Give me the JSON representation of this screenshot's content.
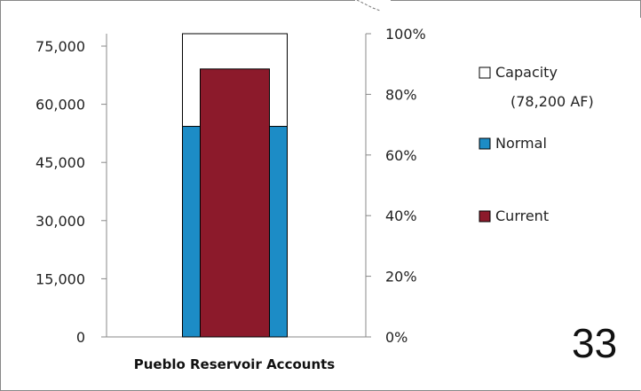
{
  "chart_data": {
    "type": "bar",
    "categories": [
      "Pueblo Reservoir Accounts"
    ],
    "series": [
      {
        "name": "Capacity",
        "sublabel": "(78,200 AF)",
        "values": [
          78200
        ],
        "color": "#ffffff",
        "stroke": "#000000"
      },
      {
        "name": "Normal",
        "values": [
          54300
        ],
        "color": "#1c8cc6",
        "stroke": "#000000"
      },
      {
        "name": "Current",
        "values": [
          69100
        ],
        "color": "#8c1a2b",
        "stroke": "#000000"
      }
    ],
    "ylim": [
      0,
      78200
    ],
    "y_ticks": [
      {
        "value": 0,
        "label": "0"
      },
      {
        "value": 15000,
        "label": "15,000"
      },
      {
        "value": 30000,
        "label": "30,000"
      },
      {
        "value": 45000,
        "label": "45,000"
      },
      {
        "value": 60000,
        "label": "60,000"
      },
      {
        "value": 75000,
        "label": "75,000"
      }
    ],
    "y2_ticks": [
      {
        "value": 0,
        "label": "0%"
      },
      {
        "value": 20,
        "label": "20%"
      },
      {
        "value": 40,
        "label": "40%"
      },
      {
        "value": 60,
        "label": "60%"
      },
      {
        "value": 80,
        "label": "80%"
      },
      {
        "value": 100,
        "label": "100%"
      }
    ],
    "y2lim": [
      0,
      100
    ],
    "grid": false,
    "legend_position": "right"
  },
  "slide_number": "33"
}
